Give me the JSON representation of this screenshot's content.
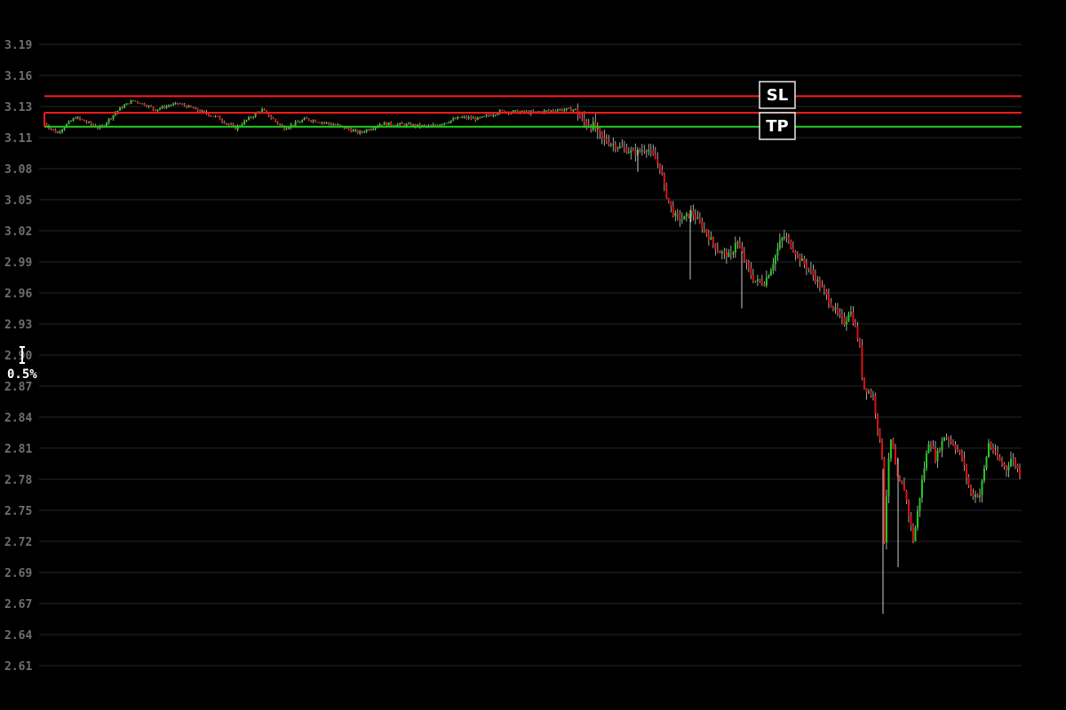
{
  "chart_data": {
    "type": "candlestick",
    "y_ticks": [
      "3.19",
      "3.16",
      "3.13",
      "3.11",
      "3.08",
      "3.05",
      "3.02",
      "2.99",
      "2.96",
      "2.93",
      "2.90",
      "2.87",
      "2.84",
      "2.81",
      "2.78",
      "2.75",
      "2.72",
      "2.69",
      "2.67",
      "2.64",
      "2.61"
    ],
    "ylim": [
      2.61,
      3.19
    ],
    "grid": true,
    "colors": {
      "up": "#22cc22",
      "down": "#dd1111",
      "grid": "#262626",
      "tick": "#6e6e6e",
      "wick": "#cccccc"
    },
    "levels": [
      {
        "label": "SL",
        "value": 3.14,
        "color": "#ff1a1a"
      },
      {
        "label": "",
        "value": 3.126,
        "color": "#ff1a1a"
      },
      {
        "label": "TP",
        "value": 3.117,
        "color": "#22cc22"
      }
    ],
    "scale_indicator": {
      "label": "0.5%"
    },
    "path": [
      [
        0,
        3.119
      ],
      [
        14,
        3.113
      ],
      [
        35,
        3.123
      ],
      [
        63,
        3.116
      ],
      [
        80,
        3.126
      ],
      [
        100,
        3.136
      ],
      [
        125,
        3.128
      ],
      [
        150,
        3.133
      ],
      [
        170,
        3.128
      ],
      [
        195,
        3.123
      ],
      [
        215,
        3.116
      ],
      [
        245,
        3.128
      ],
      [
        270,
        3.116
      ],
      [
        295,
        3.122
      ],
      [
        330,
        3.118
      ],
      [
        355,
        3.113
      ],
      [
        380,
        3.119
      ],
      [
        410,
        3.118
      ],
      [
        435,
        3.117
      ],
      [
        470,
        3.123
      ],
      [
        490,
        3.122
      ],
      [
        515,
        3.127
      ],
      [
        550,
        3.126
      ],
      [
        580,
        3.128
      ],
      [
        600,
        3.128
      ],
      [
        605,
        3.121
      ],
      [
        620,
        3.117
      ],
      [
        630,
        3.108
      ],
      [
        640,
        3.104
      ],
      [
        665,
        3.095
      ],
      [
        680,
        3.1
      ],
      [
        690,
        3.088
      ],
      [
        695,
        3.08
      ],
      [
        700,
        3.058
      ],
      [
        710,
        3.035
      ],
      [
        720,
        3.031
      ],
      [
        730,
        3.038
      ],
      [
        745,
        3.02
      ],
      [
        760,
        3.0
      ],
      [
        775,
        2.995
      ],
      [
        780,
        3.012
      ],
      [
        790,
        2.99
      ],
      [
        800,
        2.972
      ],
      [
        812,
        2.97
      ],
      [
        820,
        2.985
      ],
      [
        830,
        3.01
      ],
      [
        835,
        3.015
      ],
      [
        850,
        2.995
      ],
      [
        865,
        2.98
      ],
      [
        880,
        2.96
      ],
      [
        890,
        2.945
      ],
      [
        903,
        2.93
      ],
      [
        908,
        2.945
      ],
      [
        915,
        2.925
      ],
      [
        920,
        2.905
      ],
      [
        923,
        2.87
      ],
      [
        935,
        2.86
      ],
      [
        938,
        2.84
      ],
      [
        945,
        2.8
      ],
      [
        948,
        2.69
      ],
      [
        950,
        2.78
      ],
      [
        955,
        2.82
      ],
      [
        962,
        2.78
      ],
      [
        970,
        2.77
      ],
      [
        980,
        2.72
      ],
      [
        985,
        2.75
      ],
      [
        990,
        2.78
      ],
      [
        998,
        2.82
      ],
      [
        1005,
        2.8
      ],
      [
        1015,
        2.822
      ],
      [
        1025,
        2.815
      ],
      [
        1035,
        2.8
      ],
      [
        1045,
        2.765
      ],
      [
        1055,
        2.765
      ],
      [
        1060,
        2.79
      ],
      [
        1065,
        2.815
      ],
      [
        1075,
        2.8
      ],
      [
        1085,
        2.79
      ],
      [
        1090,
        2.8
      ],
      [
        1095,
        2.795
      ],
      [
        1100,
        2.785
      ]
    ]
  }
}
